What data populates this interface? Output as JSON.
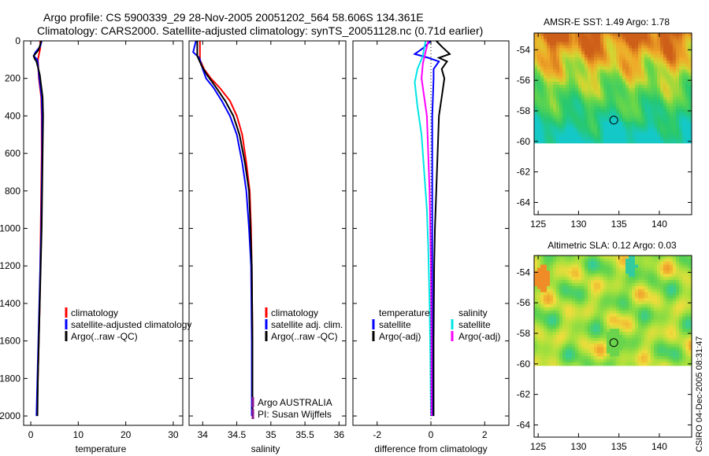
{
  "header": {
    "line1": "Argo profile: CS 5900339_29 28-Nov-2005 20051202_564 58.606S 134.361E",
    "line2": "Climatology: CARS2000. Satellite-adjusted climatology: synTS_20051128.nc (0.71d earlier)"
  },
  "watermark": "CSIRO 04-Dec-2005 08:31:47",
  "colors": {
    "climatology": "#ff0000",
    "satellite": "#0000ff",
    "argo": "#000000",
    "sat_diff": "#00e5e5",
    "argo_diff_s": "#ff00ff"
  },
  "chart_data": [
    {
      "type": "line",
      "name": "temperature-profile",
      "xlabel": "temperature",
      "xlim": [
        -1.5,
        32
      ],
      "ylim": [
        0,
        2050
      ],
      "x_ticks": [
        "0",
        "10",
        "20",
        "30"
      ],
      "y_ticks": [
        "0",
        "200",
        "400",
        "600",
        "800",
        "1000",
        "1200",
        "1400",
        "1600",
        "1800",
        "2000"
      ],
      "legend": [
        "climatology",
        "satellite-adjusted climatology",
        "Argo(..raw -QC)"
      ],
      "series": [
        {
          "name": "climatology",
          "color": "#ff0000",
          "points": [
            [
              2.0,
              0
            ],
            [
              2.0,
              40
            ],
            [
              1.5,
              100
            ],
            [
              1.7,
              200
            ],
            [
              2.2,
              300
            ],
            [
              2.3,
              400
            ],
            [
              2.3,
              600
            ],
            [
              2.2,
              800
            ],
            [
              2.1,
              1000
            ],
            [
              2.0,
              1200
            ],
            [
              1.9,
              1400
            ],
            [
              1.7,
              1600
            ],
            [
              1.5,
              1800
            ],
            [
              1.3,
              2000
            ]
          ]
        },
        {
          "name": "satellite",
          "color": "#0000ff",
          "points": [
            [
              2.3,
              0
            ],
            [
              2.0,
              30
            ],
            [
              1.0,
              60
            ],
            [
              0.6,
              80
            ],
            [
              1.4,
              100
            ],
            [
              1.8,
              200
            ],
            [
              2.3,
              300
            ],
            [
              2.4,
              400
            ],
            [
              2.4,
              600
            ],
            [
              2.3,
              800
            ],
            [
              2.2,
              1000
            ],
            [
              2.0,
              1200
            ],
            [
              1.8,
              1400
            ],
            [
              1.6,
              1600
            ],
            [
              1.4,
              1800
            ],
            [
              1.2,
              2000
            ]
          ]
        },
        {
          "name": "argo",
          "color": "#000000",
          "points": [
            [
              2.2,
              0
            ],
            [
              2.0,
              20
            ],
            [
              1.6,
              50
            ],
            [
              0.6,
              80
            ],
            [
              0.8,
              95
            ],
            [
              1.2,
              110
            ],
            [
              1.9,
              180
            ],
            [
              2.5,
              300
            ],
            [
              2.6,
              400
            ],
            [
              2.5,
              600
            ],
            [
              2.4,
              800
            ],
            [
              2.3,
              1000
            ],
            [
              2.1,
              1200
            ],
            [
              1.9,
              1400
            ],
            [
              1.7,
              1600
            ],
            [
              1.5,
              1800
            ],
            [
              1.4,
              2000
            ]
          ]
        }
      ]
    },
    {
      "type": "line",
      "name": "salinity-profile",
      "xlabel": "salinity",
      "xlim": [
        33.8,
        36.1
      ],
      "ylim": [
        0,
        2050
      ],
      "x_ticks": [
        "34",
        "34.5",
        "35",
        "35.5",
        "36"
      ],
      "legend": [
        "climatology",
        "satellite adj. clim.",
        "Argo(..raw -QC)"
      ],
      "notes": [
        "Argo AUSTRALIA",
        "PI: Susan Wijffels"
      ],
      "series": [
        {
          "name": "climatology",
          "color": "#ff0000",
          "points": [
            [
              33.96,
              0
            ],
            [
              33.96,
              100
            ],
            [
              34.02,
              150
            ],
            [
              34.12,
              200
            ],
            [
              34.25,
              250
            ],
            [
              34.4,
              320
            ],
            [
              34.5,
              400
            ],
            [
              34.58,
              500
            ],
            [
              34.64,
              650
            ],
            [
              34.69,
              800
            ],
            [
              34.71,
              1000
            ],
            [
              34.72,
              1200
            ],
            [
              34.73,
              1600
            ],
            [
              34.73,
              2000
            ]
          ]
        },
        {
          "name": "satellite",
          "color": "#0000ff",
          "points": [
            [
              33.9,
              0
            ],
            [
              33.86,
              60
            ],
            [
              33.95,
              90
            ],
            [
              34.0,
              150
            ],
            [
              34.05,
              200
            ],
            [
              34.16,
              250
            ],
            [
              34.28,
              320
            ],
            [
              34.4,
              400
            ],
            [
              34.5,
              500
            ],
            [
              34.58,
              650
            ],
            [
              34.64,
              800
            ],
            [
              34.68,
              1000
            ],
            [
              34.71,
              1200
            ],
            [
              34.72,
              1600
            ],
            [
              34.72,
              2000
            ]
          ]
        },
        {
          "name": "argo",
          "color": "#000000",
          "points": [
            [
              33.92,
              0
            ],
            [
              33.92,
              80
            ],
            [
              33.98,
              130
            ],
            [
              34.06,
              180
            ],
            [
              34.18,
              240
            ],
            [
              34.33,
              320
            ],
            [
              34.45,
              400
            ],
            [
              34.54,
              500
            ],
            [
              34.62,
              650
            ],
            [
              34.68,
              800
            ],
            [
              34.7,
              1000
            ],
            [
              34.72,
              1200
            ],
            [
              34.73,
              1600
            ],
            [
              34.73,
              2000
            ]
          ]
        }
      ]
    },
    {
      "type": "line",
      "name": "difference-profile",
      "xlabel": "difference from climatology",
      "xlim": [
        -2.9,
        2.9
      ],
      "ylim": [
        0,
        2050
      ],
      "x_ticks": [
        "-2",
        "0",
        "2"
      ],
      "legend_left_title": "temperature",
      "legend_right_title": "salinity",
      "legend": [
        "satellite",
        "Argo(-adj)",
        "satellite",
        "Argo(-adj)"
      ],
      "series": [
        {
          "name": "temp satellite",
          "color": "#0000ff",
          "points": [
            [
              0.0,
              0
            ],
            [
              -0.3,
              40
            ],
            [
              -0.6,
              70
            ],
            [
              -0.1,
              90
            ],
            [
              0.3,
              110
            ],
            [
              0.1,
              150
            ],
            [
              0.1,
              200
            ],
            [
              0.05,
              400
            ],
            [
              0.05,
              800
            ],
            [
              0.05,
              1200
            ],
            [
              0.05,
              1600
            ],
            [
              0.05,
              2000
            ]
          ]
        },
        {
          "name": "temp argo",
          "color": "#000000",
          "points": [
            [
              0.2,
              0
            ],
            [
              0.4,
              30
            ],
            [
              0.7,
              70
            ],
            [
              0.3,
              90
            ],
            [
              0.6,
              110
            ],
            [
              0.4,
              150
            ],
            [
              0.5,
              200
            ],
            [
              0.4,
              300
            ],
            [
              0.3,
              400
            ],
            [
              0.25,
              600
            ],
            [
              0.2,
              800
            ],
            [
              0.15,
              1000
            ],
            [
              0.12,
              1200
            ],
            [
              0.1,
              1600
            ],
            [
              0.1,
              2000
            ]
          ]
        },
        {
          "name": "sal satellite",
          "color": "#00e5e5",
          "points": [
            [
              -0.2,
              0
            ],
            [
              -0.3,
              80
            ],
            [
              -0.5,
              150
            ],
            [
              -0.6,
              220
            ],
            [
              -0.5,
              350
            ],
            [
              -0.35,
              500
            ],
            [
              -0.25,
              700
            ],
            [
              -0.15,
              900
            ],
            [
              -0.1,
              1100
            ],
            [
              -0.05,
              1400
            ],
            [
              -0.02,
              1700
            ],
            [
              0.0,
              2000
            ]
          ]
        },
        {
          "name": "sal argo",
          "color": "#ff00ff",
          "points": [
            [
              -0.1,
              0
            ],
            [
              -0.2,
              60
            ],
            [
              -0.3,
              120
            ],
            [
              -0.35,
              200
            ],
            [
              -0.25,
              300
            ],
            [
              -0.15,
              400
            ],
            [
              -0.1,
              600
            ],
            [
              -0.05,
              800
            ],
            [
              0.0,
              1200
            ],
            [
              0.02,
              1600
            ],
            [
              0.02,
              2000
            ]
          ]
        }
      ]
    },
    {
      "type": "heatmap",
      "name": "amsr-sst-map",
      "title": "AMSR-E SST: 1.49 Argo: 1.78",
      "xlim": [
        124.5,
        144
      ],
      "ylim": [
        -64.8,
        -52.9
      ],
      "x_ticks": [
        "125",
        "130",
        "135",
        "140"
      ],
      "y_ticks": [
        "-54",
        "-56",
        "-58",
        "-60",
        "-62",
        "-64"
      ],
      "data_extent_lat_min": -60.1,
      "argo_position": {
        "lon": 134.361,
        "lat": -58.606
      }
    },
    {
      "type": "heatmap",
      "name": "altimetric-sla-map",
      "title": "Altimetric SLA: 0.12 Argo: 0.03",
      "xlim": [
        124.5,
        144
      ],
      "ylim": [
        -64.8,
        -52.9
      ],
      "x_ticks": [
        "125",
        "130",
        "135",
        "140"
      ],
      "y_ticks": [
        "-54",
        "-56",
        "-58",
        "-60",
        "-62",
        "-64"
      ],
      "data_extent_lat_min": -60.1,
      "argo_position": {
        "lon": 134.361,
        "lat": -58.606
      }
    }
  ]
}
